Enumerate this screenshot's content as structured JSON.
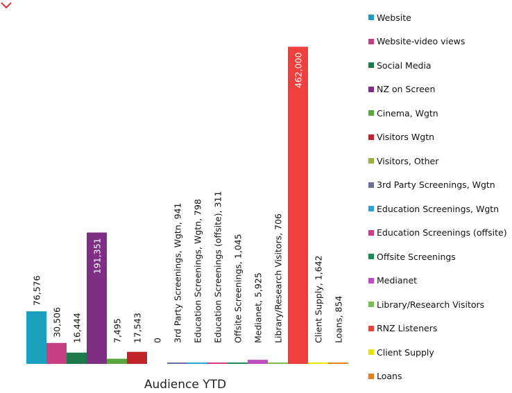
{
  "chart_data": {
    "type": "bar",
    "title": "",
    "xlabel": "Audience YTD",
    "ylabel": "",
    "ylim": [
      0,
      525000
    ],
    "grid": false,
    "legend_position": "right",
    "categories": [
      "Website",
      "Website-video views",
      "Social Media",
      "NZ on Screen",
      "Cinema, Wgtn",
      "Visitors Wgtn",
      "Visitors, Other",
      "3rd Party Screenings, Wgtn",
      "Education Screenings, Wgtn",
      "Education Screenings (offsite)",
      "Offsite Screenings",
      "Medianet",
      "Library/Research Visitors",
      "RNZ Listeners",
      "Client Supply",
      "Loans"
    ],
    "values": [
      76576,
      30506,
      16444,
      191351,
      7495,
      17543,
      0,
      941,
      798,
      311,
      1045,
      5925,
      706,
      462000,
      1642,
      854
    ],
    "data_labels": [
      "76,576",
      "30,506",
      "16,444",
      "191,351",
      "7,495",
      "17,543",
      "0",
      "3rd Party Screenings, Wgtn, 941",
      "Education Screenings, Wgtn, 798",
      "Education Screenings (offsite), 311",
      "Offsite Screenings, 1,045",
      "Medianet, 5,925",
      "Library/Research Visitors, 706",
      "462,000",
      "Client Supply, 1,642",
      "Loans, 854"
    ],
    "colors": [
      "#1aa0be",
      "#c83e83",
      "#1e7a4b",
      "#7e2f85",
      "#5aa641",
      "#c1232a",
      "#98b13c",
      "#68709e",
      "#2aa3d6",
      "#d6388a",
      "#1e8a55",
      "#c14bc0",
      "#7dbd55",
      "#f0403e",
      "#e5e500",
      "#e67e22"
    ],
    "legend": [
      "Website",
      "Website-video views",
      "Social Media",
      "NZ on Screen",
      "Cinema, Wgtn",
      "Visitors Wgtn",
      "Visitors, Other",
      "3rd Party Screenings, Wgtn",
      "Education Screenings, Wgtn",
      "Education Screenings (offsite)",
      "Offsite Screenings",
      "Medianet",
      "Library/Research Visitors",
      "RNZ Listeners",
      "Client Supply",
      "Loans"
    ]
  },
  "icons": {
    "corner": "red-chevron-icon"
  }
}
